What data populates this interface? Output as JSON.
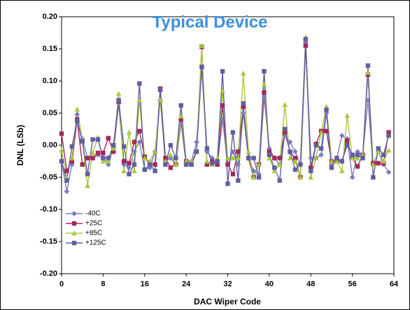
{
  "chart_data": {
    "type": "line",
    "title": "Typical Device",
    "x_label": "DAC Wiper Code",
    "y_label": "DNL (LSb)",
    "x": [
      0,
      1,
      2,
      3,
      4,
      5,
      6,
      7,
      8,
      9,
      10,
      11,
      12,
      13,
      14,
      15,
      16,
      17,
      18,
      19,
      20,
      21,
      22,
      23,
      24,
      25,
      26,
      27,
      28,
      29,
      30,
      31,
      32,
      33,
      34,
      35,
      36,
      37,
      38,
      39,
      40,
      41,
      42,
      43,
      44,
      45,
      46,
      47,
      48,
      49,
      50,
      51,
      52,
      53,
      54,
      55,
      56,
      57,
      58,
      59,
      60,
      61,
      62,
      63
    ],
    "xlim": [
      0,
      64
    ],
    "xticks": [
      0,
      8,
      16,
      24,
      32,
      40,
      48,
      56,
      64
    ],
    "ylim": [
      -0.2,
      0.2
    ],
    "yticks": [
      {
        "value": 0.2,
        "label": "0.20"
      },
      {
        "value": 0.15,
        "label": "0.15"
      },
      {
        "value": 0.1,
        "label": "0.10"
      },
      {
        "value": 0.05,
        "label": "0.05"
      },
      {
        "value": 0,
        "label": "0.00"
      },
      {
        "value": -0.05,
        "label": "-0.05"
      },
      {
        "value": -0.1,
        "label": "-0.10"
      },
      {
        "value": -0.15,
        "label": "-0.15"
      },
      {
        "value": -0.2,
        "label": "-0.20"
      }
    ],
    "grid": false,
    "legend": "lower left",
    "series": [
      {
        "name": "-40C",
        "color": "#7b7bc4",
        "marker": "diamond",
        "values": [
          -0.025,
          -0.072,
          -0.03,
          0.048,
          0.01,
          -0.02,
          -0.02,
          -0.015,
          -0.02,
          -0.03,
          -0.005,
          0.065,
          -0.03,
          -0.035,
          -0.01,
          0.005,
          -0.038,
          -0.035,
          -0.01,
          0.07,
          -0.025,
          -0.02,
          -0.03,
          0.035,
          -0.03,
          -0.025,
          0.005,
          0.12,
          -0.01,
          -0.02,
          -0.03,
          0.04,
          -0.03,
          -0.01,
          -0.03,
          0.05,
          -0.02,
          -0.04,
          -0.045,
          0.075,
          -0.005,
          -0.02,
          -0.03,
          0.015,
          0.005,
          -0.01,
          -0.03,
          0.16,
          -0.02,
          -0.02,
          -0.015,
          0.05,
          -0.03,
          -0.02,
          0.015,
          0.01,
          -0.05,
          -0.01,
          -0.015,
          0.07,
          -0.03,
          -0.01,
          -0.03,
          -0.042
        ]
      },
      {
        "name": "+25C",
        "color": "#a3285c",
        "marker": "square",
        "values": [
          0.018,
          -0.04,
          -0.025,
          0.04,
          -0.03,
          -0.02,
          -0.02,
          -0.012,
          -0.012,
          0.011,
          -0.01,
          0.068,
          -0.025,
          -0.028,
          0.005,
          0.022,
          -0.018,
          -0.03,
          -0.03,
          0.088,
          -0.02,
          -0.035,
          -0.03,
          0.04,
          -0.025,
          -0.03,
          -0.01,
          0.153,
          -0.03,
          -0.025,
          -0.03,
          0.062,
          -0.03,
          -0.045,
          -0.01,
          0.06,
          -0.02,
          -0.05,
          -0.03,
          0.082,
          -0.01,
          -0.02,
          -0.02,
          0.02,
          -0.01,
          -0.02,
          -0.05,
          0.155,
          -0.035,
          0.002,
          0.022,
          0.022,
          -0.025,
          -0.025,
          -0.025,
          0.007,
          -0.02,
          -0.033,
          -0.015,
          0.11,
          -0.028,
          -0.028,
          -0.028,
          0.02
        ]
      },
      {
        "name": "+85C",
        "color": "#a8c83c",
        "marker": "triangle",
        "values": [
          -0.008,
          -0.05,
          -0.02,
          0.056,
          0.008,
          -0.063,
          -0.012,
          0.012,
          -0.025,
          -0.025,
          -0.005,
          0.08,
          -0.04,
          0.02,
          -0.04,
          0.07,
          -0.02,
          -0.025,
          -0.01,
          0.07,
          -0.025,
          -0.015,
          -0.03,
          0.045,
          -0.025,
          -0.025,
          -0.01,
          0.155,
          -0.025,
          -0.03,
          -0.02,
          0.085,
          -0.02,
          -0.02,
          -0.02,
          0.112,
          -0.01,
          -0.05,
          -0.03,
          0.095,
          -0.02,
          -0.04,
          -0.03,
          0.063,
          -0.02,
          -0.025,
          -0.05,
          0.168,
          -0.05,
          -0.02,
          0.02,
          0.06,
          -0.025,
          -0.025,
          -0.04,
          0.046,
          -0.02,
          -0.02,
          -0.015,
          0.113,
          -0.03,
          -0.01,
          -0.025,
          -0.008
        ]
      },
      {
        "name": "+125C",
        "color": "#5f5f9f",
        "marker": "square",
        "values": [
          -0.025,
          -0.055,
          -0.002,
          0.038,
          0.006,
          -0.045,
          0.009,
          0.009,
          -0.02,
          -0.02,
          0.0,
          0.07,
          -0.002,
          -0.045,
          -0.03,
          0.096,
          -0.038,
          -0.03,
          -0.04,
          0.086,
          -0.03,
          0.0,
          -0.02,
          0.062,
          -0.03,
          -0.03,
          -0.01,
          0.122,
          -0.005,
          -0.028,
          -0.025,
          0.115,
          -0.06,
          0.02,
          -0.055,
          0.065,
          -0.02,
          -0.02,
          -0.05,
          0.115,
          -0.015,
          -0.035,
          -0.055,
          0.025,
          -0.01,
          -0.038,
          -0.03,
          0.165,
          -0.04,
          0.0,
          -0.005,
          0.055,
          -0.035,
          -0.02,
          -0.025,
          0.0,
          -0.015,
          -0.015,
          -0.02,
          0.124,
          -0.05,
          -0.005,
          -0.015,
          0.015
        ]
      }
    ]
  }
}
